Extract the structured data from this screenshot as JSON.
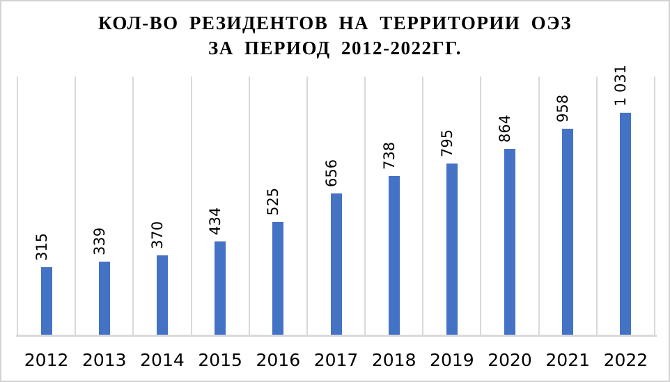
{
  "window": {
    "background_color": "#FFFFFF",
    "border_color": "#D2D2D2"
  },
  "chart_data": {
    "type": "bar",
    "title_line1": "КОЛ-ВО РЕЗИДЕНТОВ НА ТЕРРИТОРИИ ОЭЗ",
    "title_line2": "ЗА ПЕРИОД 2012-2022ГГ.",
    "categories": [
      "2012",
      "2013",
      "2014",
      "2015",
      "2016",
      "2017",
      "2018",
      "2019",
      "2020",
      "2021",
      "2022"
    ],
    "values": [
      315,
      339,
      370,
      434,
      525,
      656,
      738,
      795,
      864,
      958,
      1031
    ],
    "value_labels": [
      "315",
      "339",
      "370",
      "434",
      "525",
      "656",
      "738",
      "795",
      "864",
      "958",
      "1 031"
    ],
    "value_label_rotation_deg": -90,
    "xlabel": "",
    "ylabel": "",
    "ylim": [
      0,
      1200
    ],
    "y_axis_visible": false,
    "grid": "vertical-category-boundaries",
    "legend": "none",
    "bar_color": "#4472C4",
    "gridline_color": "#D9D9D9",
    "axis_line_color": "#D9D9D9",
    "text_color": "#000000",
    "title_color": "#000000"
  }
}
